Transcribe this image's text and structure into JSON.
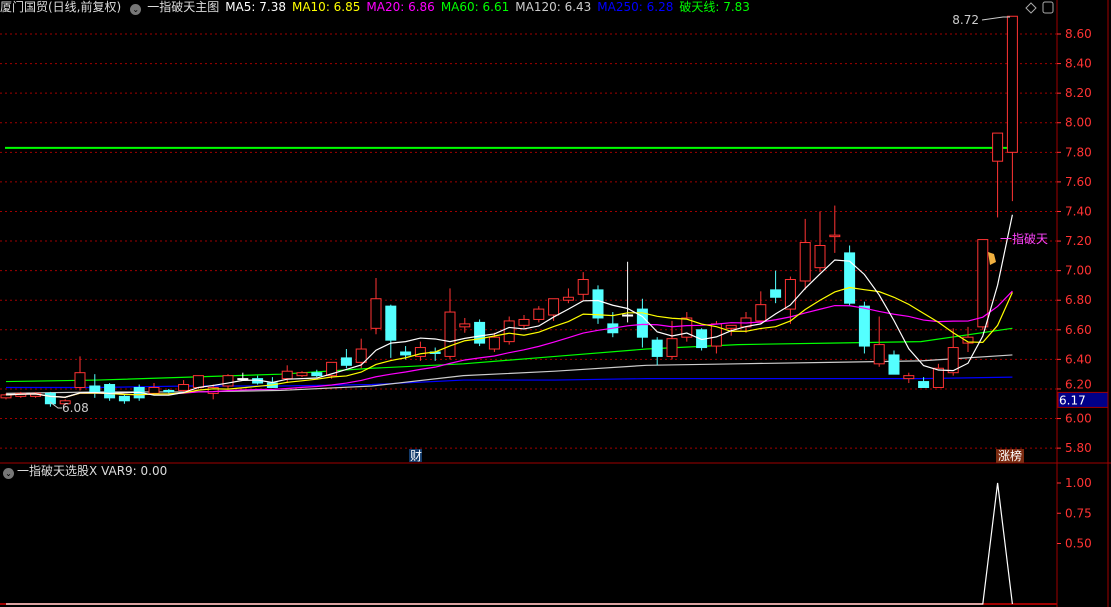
{
  "header": {
    "stock": "厦门国贸(日线,前复权)",
    "indicator": "一指破天主图",
    "ma": [
      {
        "label": "MA5: 7.38",
        "color": "#ffffff"
      },
      {
        "label": "MA10: 6.85",
        "color": "#ffff00"
      },
      {
        "label": "MA20: 6.86",
        "color": "#ff00ff"
      },
      {
        "label": "MA60: 6.61",
        "color": "#00ff00"
      },
      {
        "label": "MA120: 6.43",
        "color": "#cccccc"
      },
      {
        "label": "MA250: 6.28",
        "color": "#0000ff"
      },
      {
        "label": "破天线: 7.83",
        "color": "#00ff00"
      }
    ]
  },
  "subheader": {
    "indicator": "一指破天选股X",
    "var": "VAR9: 0.00"
  },
  "colors": {
    "up": "#ff3333",
    "down": "#54ffff",
    "grid": "#a00000",
    "axis": "#ff3333",
    "line_green": "#00ff00"
  },
  "icons": [
    "chevron-down-icon",
    "diamond-icon",
    "panel-toggle-icon"
  ],
  "chart_data": [
    {
      "type": "candlestick",
      "ylim": [
        5.75,
        8.75
      ],
      "yticks": [
        "8.60",
        "8.40",
        "8.20",
        "8.00",
        "7.80",
        "7.60",
        "7.40",
        "7.20",
        "7.00",
        "6.80",
        "6.60",
        "6.40",
        "6.20",
        "6.00",
        "5.80"
      ],
      "grid": true,
      "ohlc": [
        [
          6.14,
          6.17,
          6.13,
          6.16
        ],
        [
          6.15,
          6.18,
          6.14,
          6.17
        ],
        [
          6.15,
          6.18,
          6.14,
          6.17
        ],
        [
          6.17,
          6.18,
          6.08,
          6.1
        ],
        [
          6.1,
          6.13,
          6.09,
          6.12
        ],
        [
          6.21,
          6.42,
          6.19,
          6.31
        ],
        [
          6.22,
          6.3,
          6.14,
          6.18
        ],
        [
          6.23,
          6.24,
          6.12,
          6.14
        ],
        [
          6.15,
          6.16,
          6.1,
          6.12
        ],
        [
          6.21,
          6.23,
          6.12,
          6.14
        ],
        [
          6.17,
          6.24,
          6.16,
          6.21
        ],
        [
          6.19,
          6.2,
          6.16,
          6.18
        ],
        [
          6.19,
          6.26,
          6.18,
          6.23
        ],
        [
          6.21,
          6.29,
          6.2,
          6.29
        ],
        [
          6.17,
          6.23,
          6.13,
          6.21
        ],
        [
          6.22,
          6.3,
          6.2,
          6.29
        ],
        [
          6.27,
          6.31,
          6.26,
          6.27
        ],
        [
          6.27,
          6.29,
          6.23,
          6.24
        ],
        [
          6.24,
          6.28,
          6.21,
          6.21
        ],
        [
          6.27,
          6.36,
          6.24,
          6.32
        ],
        [
          6.29,
          6.32,
          6.28,
          6.31
        ],
        [
          6.31,
          6.33,
          6.28,
          6.29
        ],
        [
          6.29,
          6.38,
          6.27,
          6.38
        ],
        [
          6.41,
          6.47,
          6.34,
          6.36
        ],
        [
          6.38,
          6.54,
          6.34,
          6.47
        ],
        [
          6.61,
          6.95,
          6.57,
          6.81
        ],
        [
          6.76,
          6.77,
          6.41,
          6.53
        ],
        [
          6.45,
          6.49,
          6.4,
          6.43
        ],
        [
          6.42,
          6.52,
          6.39,
          6.48
        ],
        [
          6.45,
          6.48,
          6.39,
          6.44
        ],
        [
          6.42,
          6.88,
          6.4,
          6.72
        ],
        [
          6.62,
          6.68,
          6.58,
          6.64
        ],
        [
          6.65,
          6.67,
          6.49,
          6.51
        ],
        [
          6.47,
          6.58,
          6.45,
          6.55
        ],
        [
          6.52,
          6.69,
          6.5,
          6.66
        ],
        [
          6.63,
          6.7,
          6.61,
          6.67
        ],
        [
          6.67,
          6.76,
          6.65,
          6.74
        ],
        [
          6.7,
          6.81,
          6.66,
          6.81
        ],
        [
          6.8,
          6.88,
          6.78,
          6.82
        ],
        [
          6.84,
          6.99,
          6.8,
          6.94
        ],
        [
          6.87,
          6.9,
          6.64,
          6.68
        ],
        [
          6.64,
          6.72,
          6.55,
          6.58
        ],
        [
          6.7,
          7.06,
          6.65,
          6.7
        ],
        [
          6.74,
          6.81,
          6.48,
          6.55
        ],
        [
          6.53,
          6.55,
          6.36,
          6.42
        ],
        [
          6.42,
          6.66,
          6.4,
          6.54
        ],
        [
          6.55,
          6.72,
          6.52,
          6.68
        ],
        [
          6.6,
          6.61,
          6.46,
          6.48
        ],
        [
          6.49,
          6.66,
          6.44,
          6.64
        ],
        [
          6.61,
          6.63,
          6.56,
          6.63
        ],
        [
          6.62,
          6.72,
          6.58,
          6.68
        ],
        [
          6.66,
          6.86,
          6.64,
          6.77
        ],
        [
          6.87,
          7.0,
          6.78,
          6.82
        ],
        [
          6.74,
          6.96,
          6.64,
          6.94
        ],
        [
          6.93,
          7.35,
          6.87,
          7.19
        ],
        [
          7.02,
          7.4,
          6.99,
          7.17
        ],
        [
          7.23,
          7.44,
          7.12,
          7.24
        ],
        [
          7.12,
          7.17,
          6.76,
          6.78
        ],
        [
          6.76,
          6.79,
          6.44,
          6.49
        ],
        [
          6.37,
          6.69,
          6.35,
          6.5
        ],
        [
          6.43,
          6.46,
          6.3,
          6.3
        ],
        [
          6.27,
          6.31,
          6.24,
          6.29
        ],
        [
          6.25,
          6.28,
          6.21,
          6.21
        ],
        [
          6.21,
          6.37,
          6.21,
          6.34
        ],
        [
          6.31,
          6.61,
          6.29,
          6.48
        ],
        [
          6.51,
          6.62,
          6.45,
          6.55
        ],
        [
          6.62,
          7.21,
          6.6,
          7.21
        ],
        [
          7.74,
          7.93,
          7.36,
          7.93
        ],
        [
          7.8,
          8.72,
          7.47,
          8.72
        ]
      ],
      "ma60": [
        6.25,
        6.26,
        6.28,
        6.3,
        6.34,
        6.37,
        6.42,
        6.47,
        6.5,
        6.51,
        6.52,
        6.61
      ],
      "ma120": [
        6.17,
        6.18,
        6.18,
        6.19,
        6.22,
        6.29,
        6.32,
        6.36,
        6.37,
        6.38,
        6.39,
        6.43
      ],
      "ma250": [
        6.21,
        6.21,
        6.22,
        6.22,
        6.23,
        6.26,
        6.26,
        6.27,
        6.27,
        6.27,
        6.27,
        6.28
      ],
      "potian_line": 7.83,
      "annotations": {
        "low": "6.08",
        "high": "8.72",
        "signal": "一指破天",
        "cai": "财",
        "zhangbang": "涨榜",
        "last_price": "6.17"
      }
    },
    {
      "type": "line",
      "ylim": [
        0,
        1.1
      ],
      "yticks": [
        "1.00",
        "0.75",
        "0.50"
      ],
      "series": [
        {
          "name": "VAR9",
          "spike_index": 67,
          "values_note_zero_else": 0
        }
      ]
    }
  ]
}
